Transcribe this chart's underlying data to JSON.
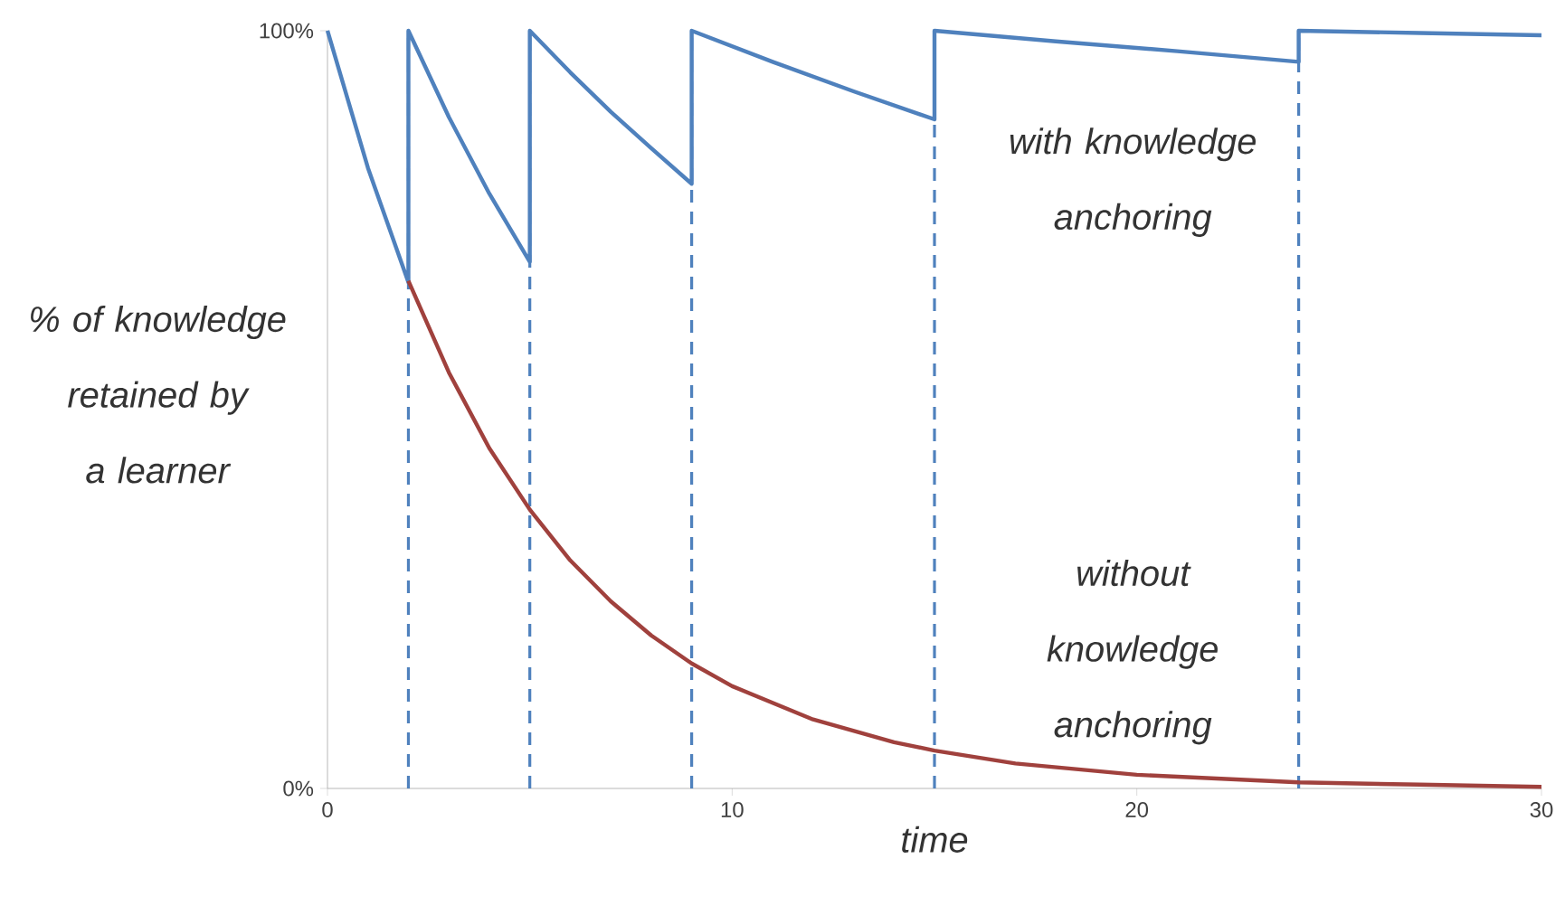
{
  "chart_data": {
    "type": "line",
    "xlabel": "time",
    "ylabel": "% of knowledge retained by a learner",
    "xlim": [
      0,
      30
    ],
    "xticks": [
      0,
      10,
      20,
      30
    ],
    "ylim": [
      0,
      100
    ],
    "yticks": [
      {
        "value": 0,
        "label": "0%"
      },
      {
        "value": 100,
        "label": "100%"
      }
    ],
    "grid": false,
    "legend": false,
    "marker": "none",
    "series": [
      {
        "name": "with knowledge anchoring",
        "color": "#4f81bd",
        "x": [
          0,
          1,
          2,
          2,
          3,
          4,
          5,
          5,
          6,
          7,
          8,
          9,
          9,
          11,
          13,
          15,
          15,
          18,
          21,
          24,
          24,
          27,
          30
        ],
        "values": [
          100,
          81.9,
          66.8,
          100,
          88.6,
          78.5,
          69.5,
          100,
          94.5,
          89.3,
          84.5,
          79.8,
          100,
          95.9,
          92.0,
          88.3,
          100,
          98.6,
          97.3,
          95.9,
          100,
          99.7,
          99.4
        ]
      },
      {
        "name": "without knowledge anchoring",
        "color": "#a0413d",
        "x": [
          2,
          3,
          4,
          5,
          6,
          7,
          8,
          9,
          10,
          12,
          14,
          15,
          17,
          20,
          24,
          27,
          30
        ],
        "values": [
          67.0,
          54.9,
          44.9,
          36.8,
          30.1,
          24.7,
          20.2,
          16.5,
          13.5,
          9.1,
          6.1,
          5.0,
          3.3,
          1.8,
          0.8,
          0.5,
          0.2
        ]
      }
    ],
    "ref_lines": [
      {
        "axis": "x",
        "value": 2,
        "color": "#4f81bd",
        "line_style": "dashed"
      },
      {
        "axis": "x",
        "value": 5,
        "color": "#4f81bd",
        "line_style": "dashed"
      },
      {
        "axis": "x",
        "value": 9,
        "color": "#4f81bd",
        "line_style": "dashed"
      },
      {
        "axis": "x",
        "value": 15,
        "color": "#4f81bd",
        "line_style": "dashed"
      },
      {
        "axis": "x",
        "value": 24,
        "color": "#4f81bd",
        "line_style": "dashed"
      }
    ]
  }
}
